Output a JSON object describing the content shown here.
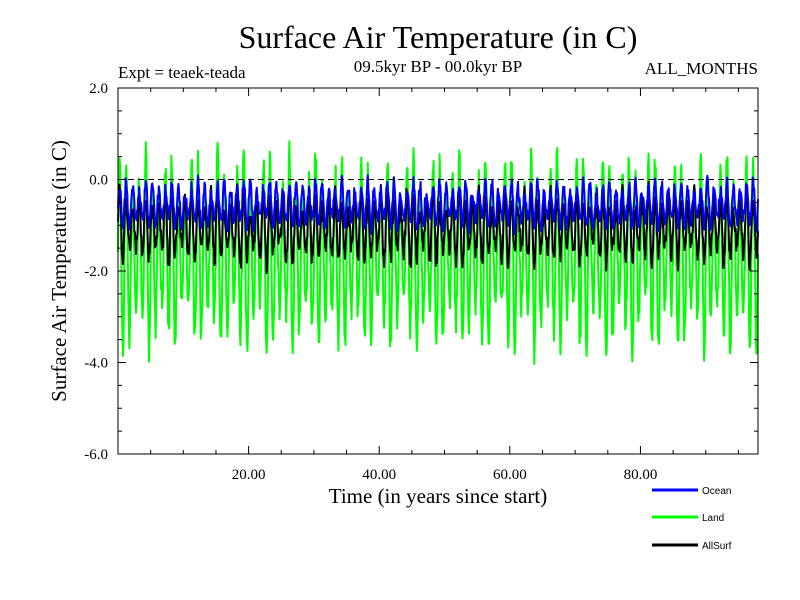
{
  "chart_data": {
    "type": "line",
    "title": "Surface Air Temperature (in C)",
    "subtitle_left": "Expt = teaek-teada",
    "subtitle_center": "09.5kyr BP - 00.0kyr BP",
    "subtitle_right": "ALL_MONTHS",
    "xlabel": "Time (in years since start)",
    "ylabel": "Surface Air Temperature (in C)",
    "xlim": [
      0,
      98
    ],
    "ylim": [
      -6.0,
      2.0
    ],
    "xticks": [
      20,
      40,
      60,
      80
    ],
    "xtick_labels": [
      "20.00",
      "40.00",
      "60.00",
      "80.00"
    ],
    "yticks": [
      2.0,
      0.0,
      -2.0,
      -4.0,
      -6.0
    ],
    "ytick_labels": [
      "2.0",
      "0.0",
      "-2.0",
      "-4.0",
      "-6.0"
    ],
    "reference_line": {
      "y": 0.0,
      "style": "dashed"
    },
    "grid": false,
    "legend_position": "bottom-right",
    "samples_per_year": 12,
    "series": [
      {
        "name": "Ocean",
        "color": "#0000ff",
        "mean": -0.55,
        "amplitude": 0.45,
        "noise": 0.15
      },
      {
        "name": "Land",
        "color": "#00ff00",
        "mean": -1.6,
        "amplitude": 1.85,
        "noise": 0.35
      },
      {
        "name": "AllSurf",
        "color": "#000000",
        "mean": -1.05,
        "amplitude": 0.7,
        "noise": 0.2
      }
    ]
  }
}
